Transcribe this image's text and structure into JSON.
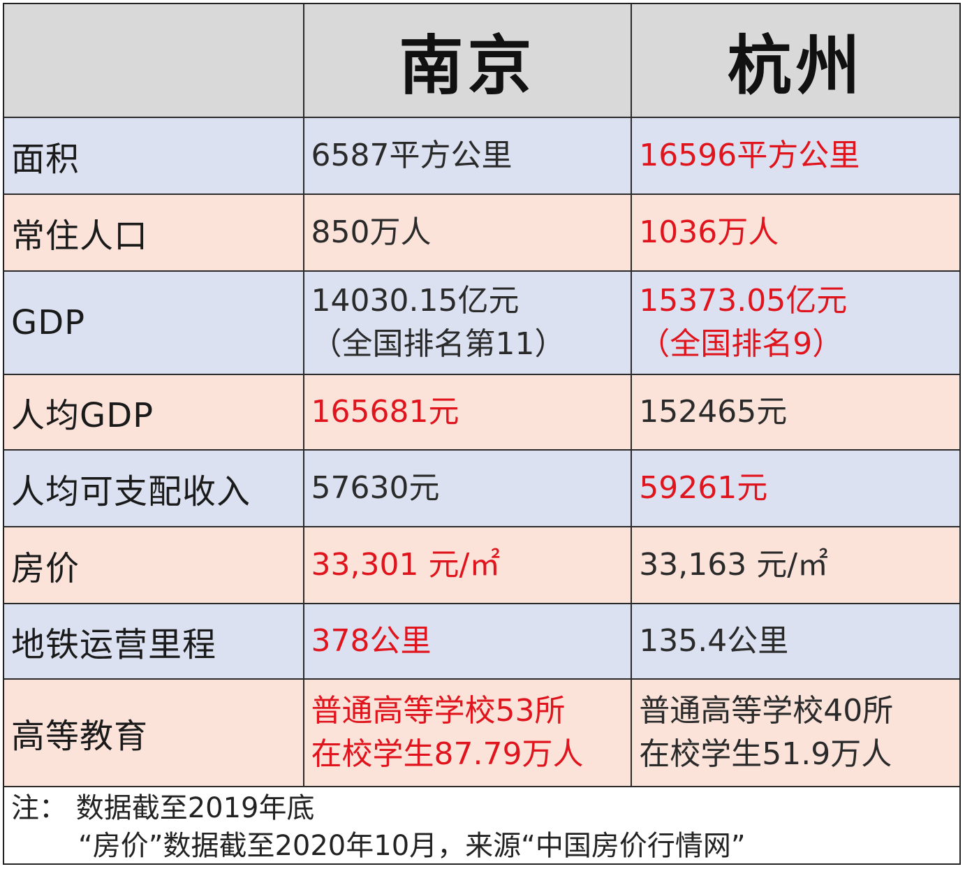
{
  "header": {
    "blank": "",
    "city1": "南京",
    "city2": "杭州"
  },
  "rows": [
    {
      "label": "面积",
      "nanjing": [
        "6587平方公里"
      ],
      "hangzhou": [
        "16596平方公里"
      ],
      "highlight": "hangzhou"
    },
    {
      "label": "常住人口",
      "nanjing": [
        "850万人"
      ],
      "hangzhou": [
        "1036万人"
      ],
      "highlight": "hangzhou"
    },
    {
      "label": "GDP",
      "nanjing": [
        "14030.15亿元",
        "（全国排名第11）"
      ],
      "hangzhou": [
        "15373.05亿元",
        "（全国排名9）"
      ],
      "highlight": "hangzhou"
    },
    {
      "label": "人均GDP",
      "nanjing": [
        "165681元"
      ],
      "hangzhou": [
        "152465元"
      ],
      "highlight": "nanjing"
    },
    {
      "label": "人均可支配收入",
      "nanjing": [
        "57630元"
      ],
      "hangzhou": [
        "59261元"
      ],
      "highlight": "hangzhou"
    },
    {
      "label": "房价",
      "nanjing": [
        "33,301 元/㎡"
      ],
      "hangzhou": [
        "33,163 元/㎡"
      ],
      "highlight": "nanjing"
    },
    {
      "label": "地铁运营里程",
      "nanjing": [
        "378公里"
      ],
      "hangzhou": [
        "135.4公里"
      ],
      "highlight": "nanjing"
    },
    {
      "label": "高等教育",
      "nanjing": [
        "普通高等学校53所",
        "在校学生87.79万人"
      ],
      "hangzhou": [
        "普通高等学校40所",
        "在校学生51.9万人"
      ],
      "highlight": "nanjing"
    }
  ],
  "note": {
    "line1": "注：  数据截至2019年底",
    "line2": "“房价”数据截至2020年10月，来源“中国房价行情网”"
  },
  "colors": {
    "header_bg": "#d9d9d9",
    "row_blue": "#dbe1f1",
    "row_pink": "#fbe3da",
    "highlight_red": "#e0141c"
  }
}
